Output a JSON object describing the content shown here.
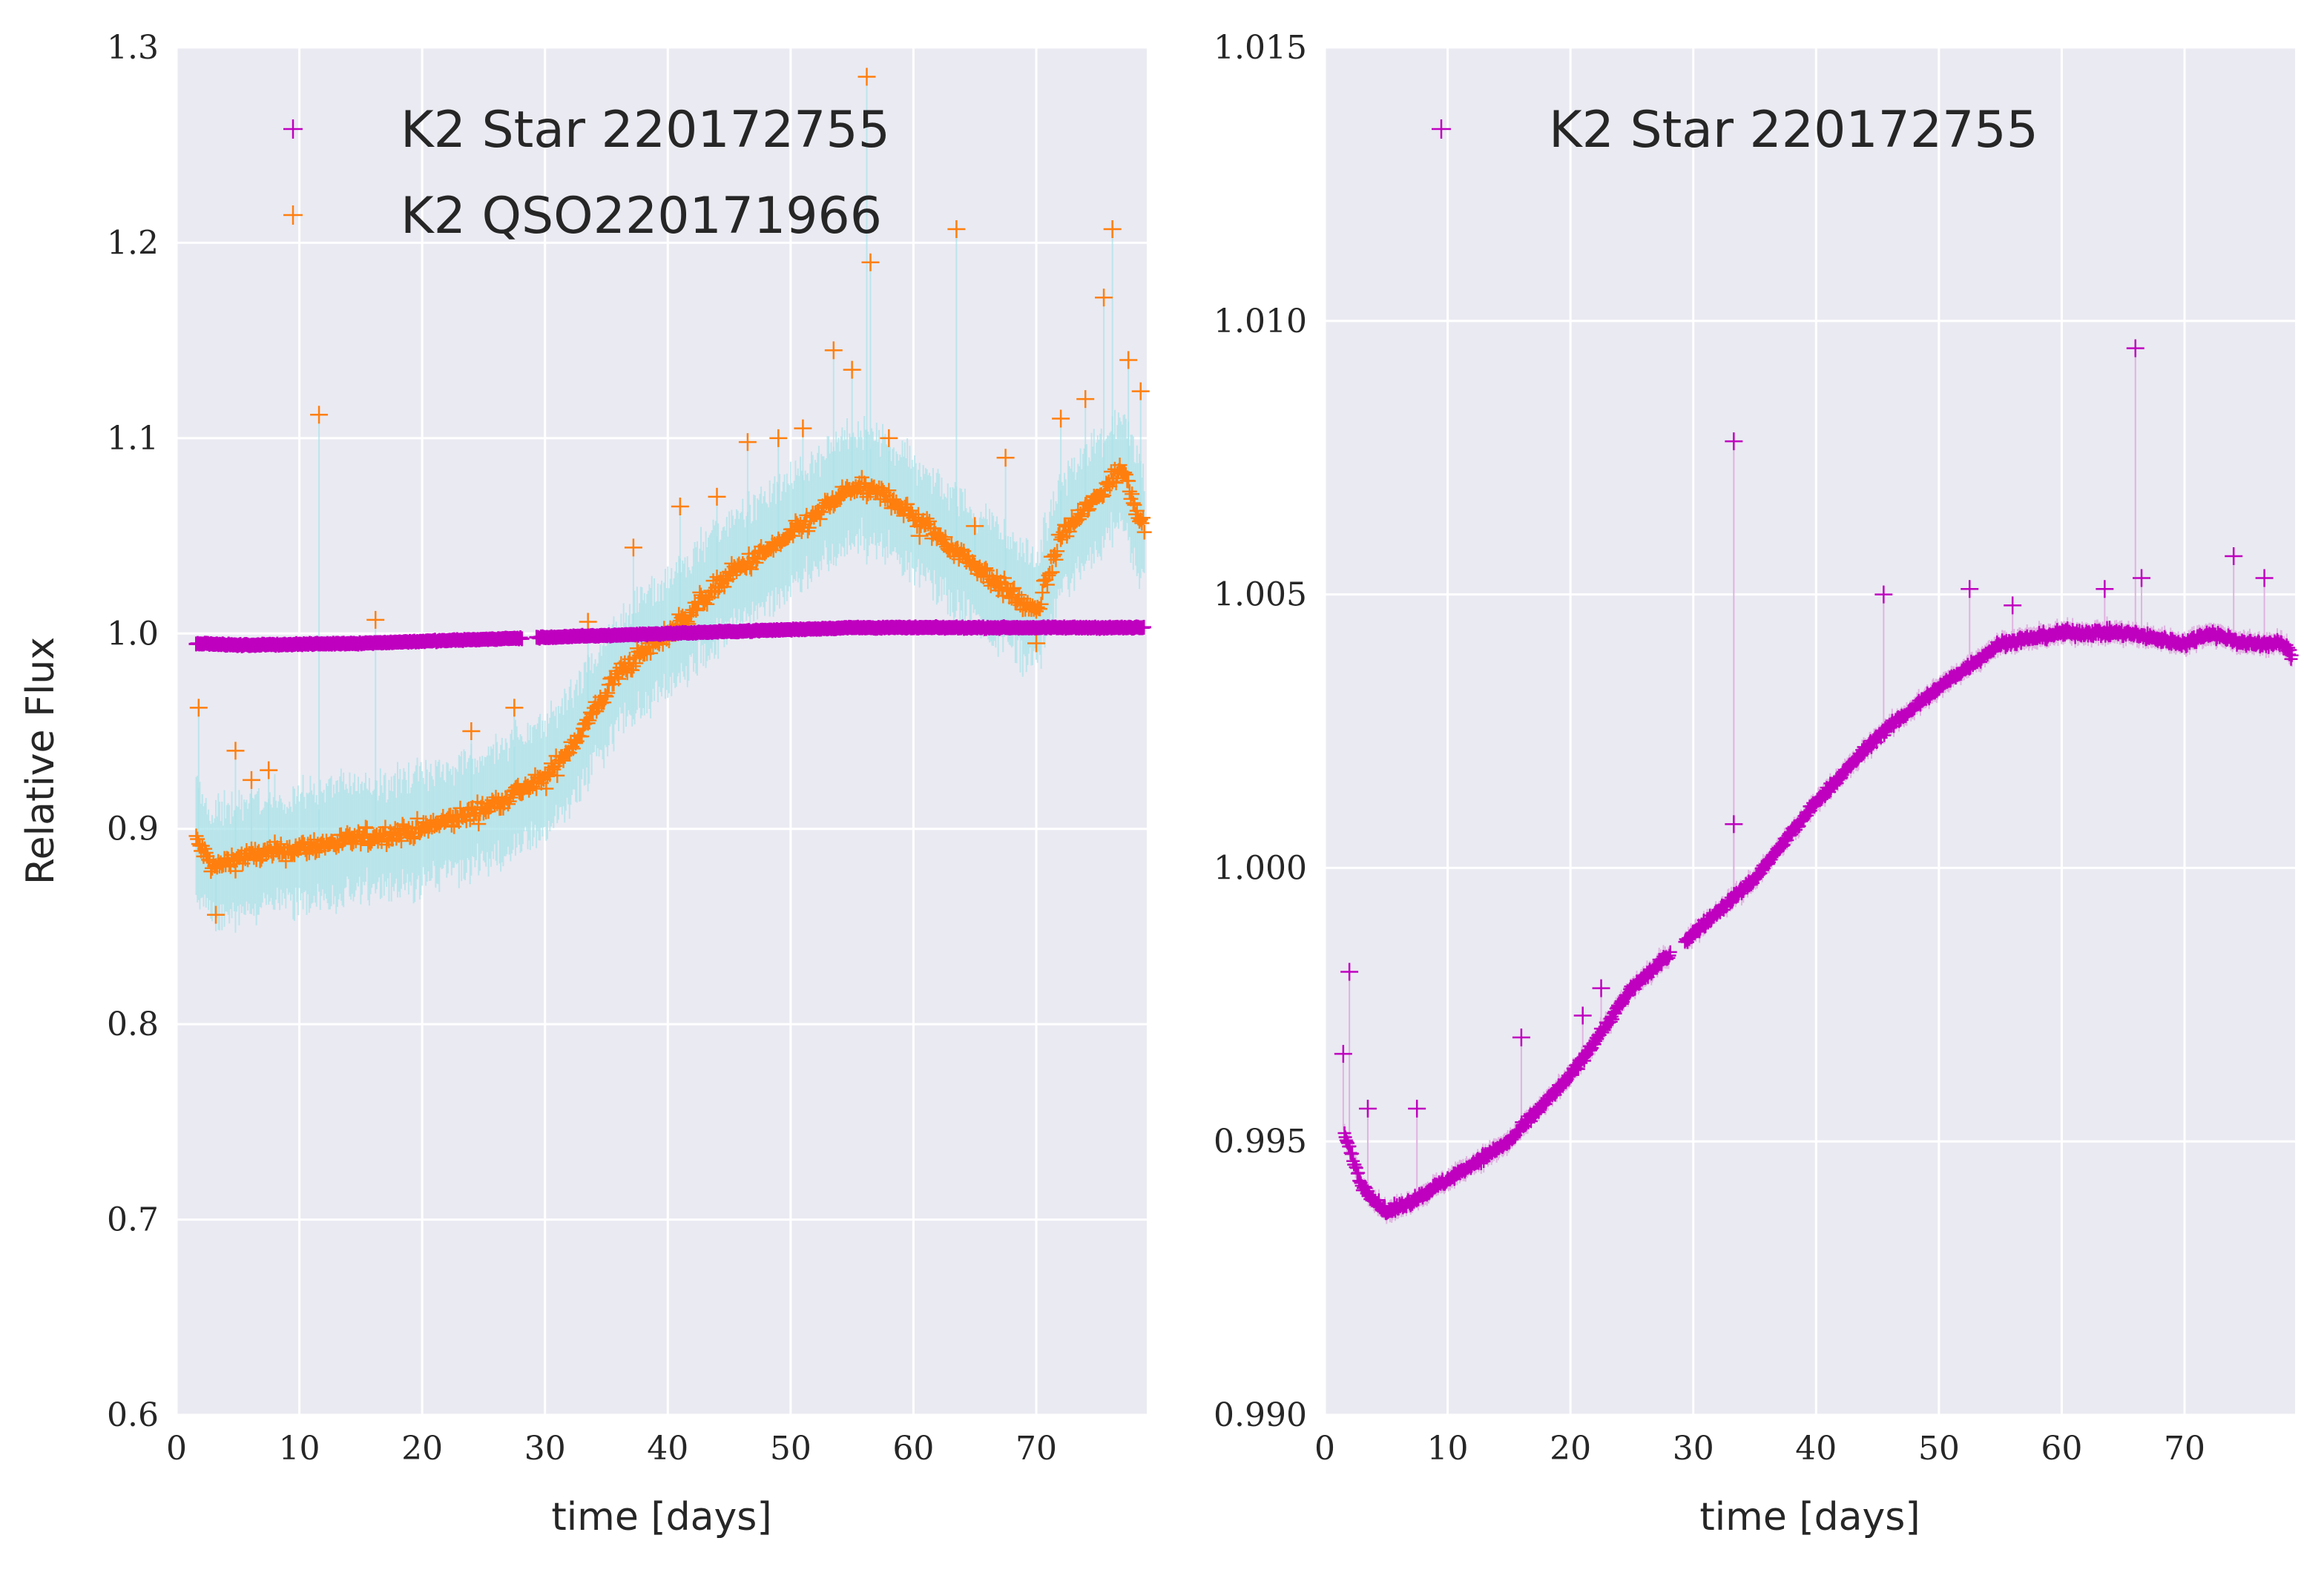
{
  "chart_data": [
    {
      "type": "scatter",
      "xlabel": "time [days]",
      "ylabel": "Relative Flux",
      "xlim": [
        0,
        79
      ],
      "ylim": [
        0.6,
        1.3
      ],
      "xticks": [
        "0",
        "10",
        "20",
        "30",
        "40",
        "50",
        "60",
        "70"
      ],
      "yticks": [
        "0.6",
        "0.7",
        "0.8",
        "0.9",
        "1.0",
        "1.1",
        "1.2",
        "1.3"
      ],
      "grid": true,
      "legend_position": "top-left",
      "series": [
        {
          "name": "K2 Star 220172755",
          "color": "#bf00bf",
          "marker": "plus",
          "x": [
            1.5,
            5,
            10,
            15,
            20,
            25,
            30,
            35,
            40,
            45,
            50,
            55,
            60,
            65,
            70,
            75,
            79
          ],
          "y": [
            0.995,
            0.994,
            0.9945,
            0.995,
            0.996,
            0.997,
            0.998,
            0.999,
            1.0,
            1.001,
            1.002,
            1.003,
            1.003,
            1.003,
            1.003,
            1.003,
            1.003
          ]
        },
        {
          "name": "K2 QSO220171966",
          "color": "#ff7f0e",
          "error_color": "#a8e2e8",
          "marker": "plus",
          "x": [
            1.5,
            3,
            5,
            10,
            15,
            20,
            25,
            28,
            30,
            33,
            36,
            40,
            45,
            50,
            55,
            58,
            62,
            66,
            70,
            72,
            75,
            77,
            79
          ],
          "y": [
            0.895,
            0.88,
            0.885,
            0.89,
            0.895,
            0.9,
            0.91,
            0.92,
            0.925,
            0.95,
            0.98,
            1.0,
            1.03,
            1.05,
            1.075,
            1.07,
            1.05,
            1.03,
            1.01,
            1.05,
            1.07,
            1.085,
            1.05
          ]
        }
      ]
    },
    {
      "type": "scatter",
      "xlabel": "time [days]",
      "ylabel": "",
      "xlim": [
        0,
        79
      ],
      "ylim": [
        0.99,
        1.015
      ],
      "xticks": [
        "0",
        "10",
        "20",
        "30",
        "40",
        "50",
        "60",
        "70"
      ],
      "yticks": [
        "0.990",
        "0.995",
        "1.000",
        "1.005",
        "1.010",
        "1.015"
      ],
      "grid": true,
      "legend_position": "top-left",
      "series": [
        {
          "name": "K2 Star 220172755",
          "color": "#bf00bf",
          "marker": "plus",
          "x": [
            1.5,
            3,
            5,
            7,
            10,
            15,
            20,
            25,
            30,
            35,
            40,
            45,
            50,
            55,
            60,
            65,
            70,
            72,
            75,
            78,
            79
          ],
          "y": [
            0.9952,
            0.9942,
            0.9937,
            0.9939,
            0.9943,
            0.995,
            0.9962,
            0.9978,
            0.9988,
            0.9998,
            1.0012,
            1.0024,
            1.0033,
            1.0041,
            1.0043,
            1.0043,
            1.0041,
            1.0043,
            1.0041,
            1.0041,
            1.0038
          ]
        }
      ],
      "outliers": {
        "x": [
          1.5,
          2,
          3.5,
          7.5,
          16,
          21,
          22.5,
          33.3,
          33.3,
          45.5,
          52.5,
          56,
          63.5,
          66,
          66.5,
          74,
          76.5
        ],
        "y": [
          0.9966,
          0.9981,
          0.9956,
          0.9956,
          0.9969,
          0.9973,
          0.9978,
          1.0078,
          1.0008,
          1.005,
          1.0051,
          1.0048,
          1.0051,
          1.0095,
          1.0053,
          1.0057,
          1.0053
        ]
      }
    }
  ]
}
